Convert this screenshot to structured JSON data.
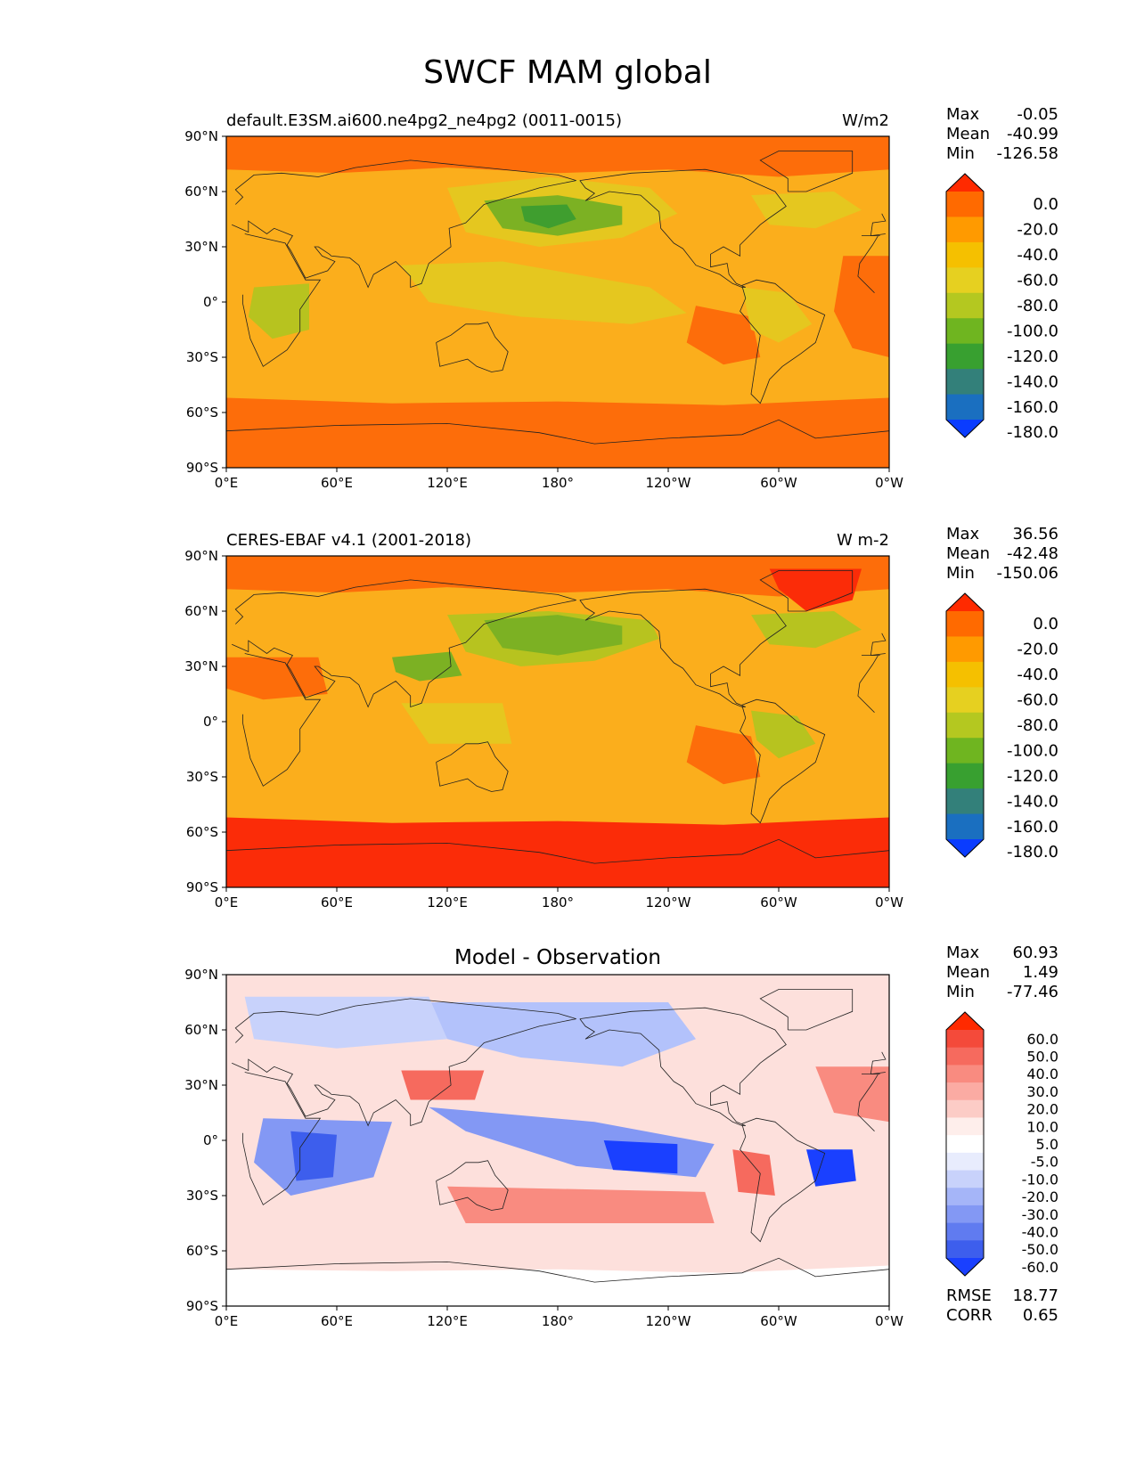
{
  "figure_title": "SWCF MAM global",
  "chart_data": [
    {
      "type": "heatmap",
      "title_left": "default.E3SM.ai600.ne4pg2_ne4pg2 (0011-0015)",
      "title_center": "",
      "units": "W/m2",
      "stats": [
        {
          "label": "Max",
          "value": "-0.05"
        },
        {
          "label": "Mean",
          "value": "-40.99"
        },
        {
          "label": "Min",
          "value": "-126.58"
        }
      ],
      "extra_stats": [],
      "colorbar": {
        "levels": [
          "0.0",
          "-20.0",
          "-40.0",
          "-60.0",
          "-80.0",
          "-100.0",
          "-120.0",
          "-140.0",
          "-160.0",
          "-180.0"
        ],
        "colors": [
          "#ff2a00",
          "#ff6a00",
          "#ff9a00",
          "#f5c000",
          "#e6d020",
          "#b4c820",
          "#6fb520",
          "#38a030",
          "#33807a",
          "#1a6fc0",
          "#0a3cff"
        ]
      },
      "fields": [
        {
          "name": "background",
          "color": "#fbae1c"
        },
        {
          "name": "arctic-band",
          "color": "#fd6d0a"
        },
        {
          "name": "southern-ocean-band",
          "color": "#fd6d0a"
        },
        {
          "name": "north-pacific-low",
          "color": "#e5c71f"
        },
        {
          "name": "north-pacific-core",
          "color": "#7cb123"
        },
        {
          "name": "north-pacific-min",
          "color": "#3f9e2f"
        },
        {
          "name": "tropical-pacific",
          "color": "#e5c71f"
        },
        {
          "name": "east-pacific-stratocumulus",
          "color": "#fd6d0a"
        },
        {
          "name": "east-atlantic-stratocumulus",
          "color": "#fd6d0a"
        },
        {
          "name": "south-america-cloud",
          "color": "#e5c71f"
        },
        {
          "name": "central-africa-cloud",
          "color": "#b7c31f"
        },
        {
          "name": "north-atlantic-cloud",
          "color": "#e5c71f"
        }
      ],
      "x_ticks": [
        "0°E",
        "60°E",
        "120°E",
        "180°",
        "120°W",
        "60°W",
        "0°W"
      ],
      "y_ticks": [
        "90°N",
        "60°N",
        "30°N",
        "0°",
        "30°S",
        "60°S",
        "90°S"
      ],
      "xlim": [
        0,
        360
      ],
      "ylim": [
        -90,
        90
      ]
    },
    {
      "type": "heatmap",
      "title_left": "CERES-EBAF v4.1 (2001-2018)",
      "title_center": "",
      "units": "W m-2",
      "stats": [
        {
          "label": "Max",
          "value": "36.56"
        },
        {
          "label": "Mean",
          "value": "-42.48"
        },
        {
          "label": "Min",
          "value": "-150.06"
        }
      ],
      "extra_stats": [],
      "colorbar": {
        "levels": [
          "0.0",
          "-20.0",
          "-40.0",
          "-60.0",
          "-80.0",
          "-100.0",
          "-120.0",
          "-140.0",
          "-160.0",
          "-180.0"
        ],
        "colors": [
          "#ff2a00",
          "#ff6a00",
          "#ff9a00",
          "#f5c000",
          "#e6d020",
          "#b4c820",
          "#6fb520",
          "#38a030",
          "#33807a",
          "#1a6fc0",
          "#0a3cff"
        ]
      },
      "fields": [
        {
          "name": "background",
          "color": "#fbae1c"
        },
        {
          "name": "arctic-band",
          "color": "#fd6d0a"
        },
        {
          "name": "greenland-ice",
          "color": "#fb2c08"
        },
        {
          "name": "southern-ocean-band",
          "color": "#fb2c08"
        },
        {
          "name": "north-pacific-cloud",
          "color": "#b7c31f"
        },
        {
          "name": "north-pacific-core",
          "color": "#7cb123"
        },
        {
          "name": "china-cloud",
          "color": "#7cb123"
        },
        {
          "name": "north-atlantic-cloud",
          "color": "#b7c31f"
        },
        {
          "name": "amazon-cloud",
          "color": "#b7c31f"
        },
        {
          "name": "east-pacific-stratocumulus",
          "color": "#fd6d0a"
        },
        {
          "name": "sahara-desert",
          "color": "#fd6d0a"
        },
        {
          "name": "maritime-continent",
          "color": "#e5c71f"
        }
      ],
      "x_ticks": [
        "0°E",
        "60°E",
        "120°E",
        "180°",
        "120°W",
        "60°W",
        "0°W"
      ],
      "y_ticks": [
        "90°N",
        "60°N",
        "30°N",
        "0°",
        "30°S",
        "60°S",
        "90°S"
      ],
      "xlim": [
        0,
        360
      ],
      "ylim": [
        -90,
        90
      ]
    },
    {
      "type": "heatmap",
      "title_left": "",
      "title_center": "Model - Observation",
      "units": "",
      "stats": [
        {
          "label": "Max",
          "value": "60.93"
        },
        {
          "label": "Mean",
          "value": "1.49"
        },
        {
          "label": "Min",
          "value": "-77.46"
        }
      ],
      "extra_stats": [
        {
          "label": "RMSE",
          "value": "18.77"
        },
        {
          "label": "CORR",
          "value": "0.65"
        }
      ],
      "colorbar": {
        "levels": [
          "60.0",
          "50.0",
          "40.0",
          "30.0",
          "20.0",
          "10.0",
          "5.0",
          "-5.0",
          "-10.0",
          "-20.0",
          "-30.0",
          "-40.0",
          "-50.0",
          "-60.0"
        ],
        "colors": [
          "#ff2a00",
          "#f44a3a",
          "#f66a5e",
          "#f98b80",
          "#fbaba3",
          "#fcccc6",
          "#feeeeb",
          "#ffffff",
          "#e8ecfd",
          "#c8d2fb",
          "#a5b5f8",
          "#8398f4",
          "#607bf0",
          "#3d5eed",
          "#1a40ff"
        ]
      },
      "fields": [
        {
          "name": "background",
          "color": "#fde0dc"
        },
        {
          "name": "antarctica-white",
          "color": "#ffffff"
        },
        {
          "name": "north-pacific-negative",
          "color": "#b3c2fb"
        },
        {
          "name": "eurasia-negative",
          "color": "#c8d2fb"
        },
        {
          "name": "indian-ocean-negative",
          "color": "#8398f4"
        },
        {
          "name": "africa-negative-core",
          "color": "#3d5eed"
        },
        {
          "name": "tropical-pacific-negative",
          "color": "#8398f4"
        },
        {
          "name": "central-pacific-core",
          "color": "#1a40ff"
        },
        {
          "name": "south-atlantic-core",
          "color": "#1a40ff"
        },
        {
          "name": "east-china-positive",
          "color": "#f66a5e"
        },
        {
          "name": "peru-positive",
          "color": "#f66a5e"
        },
        {
          "name": "subtropical-pacific-positive",
          "color": "#f98b80"
        },
        {
          "name": "atlantic-positive",
          "color": "#f98b80"
        }
      ],
      "x_ticks": [
        "0°E",
        "60°E",
        "120°E",
        "180°",
        "120°W",
        "60°W",
        "0°W"
      ],
      "y_ticks": [
        "90°N",
        "60°N",
        "30°N",
        "0°",
        "30°S",
        "60°S",
        "90°S"
      ],
      "xlim": [
        0,
        360
      ],
      "ylim": [
        -90,
        90
      ]
    }
  ]
}
